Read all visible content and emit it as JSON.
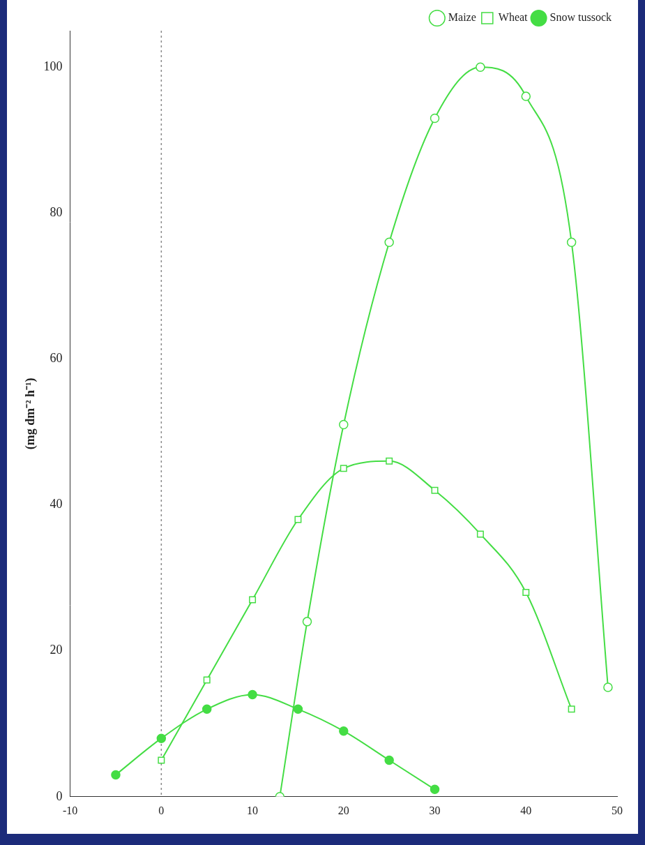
{
  "chart_data": {
    "type": "line",
    "y_label": "(mg dm⁻² h⁻¹)",
    "xlim": [
      -10,
      50
    ],
    "xticks": [
      -10,
      0,
      10,
      20,
      30,
      40,
      50
    ],
    "ylim": [
      0,
      105
    ],
    "yticks": [
      0,
      20,
      40,
      60,
      80,
      100
    ],
    "vlines": [
      0
    ],
    "grid": false,
    "legend": "upper right",
    "series": [
      {
        "name": "Maize",
        "color": "#44dd44",
        "marker": "open_circle",
        "line_style": "solid",
        "x": [
          13,
          16,
          20,
          25,
          30,
          35,
          40,
          45,
          49
        ],
        "values": [
          0,
          24,
          51,
          76,
          93,
          100,
          96,
          76,
          15
        ]
      },
      {
        "name": "Wheat",
        "color": "#44dd44",
        "marker": "open_square",
        "line_style": "solid",
        "x": [
          0,
          5,
          10,
          15,
          20,
          25,
          30,
          35,
          40,
          45
        ],
        "values": [
          5,
          16,
          27,
          38,
          45,
          46,
          42,
          36,
          28,
          12
        ]
      },
      {
        "name": "Snow tussock",
        "color": "#44dd44",
        "marker": "filled_circle",
        "line_style": "solid",
        "x": [
          -5,
          0,
          5,
          10,
          15,
          20,
          25,
          30
        ],
        "values": [
          3,
          8,
          12,
          14,
          12,
          9,
          5,
          1
        ]
      }
    ]
  }
}
